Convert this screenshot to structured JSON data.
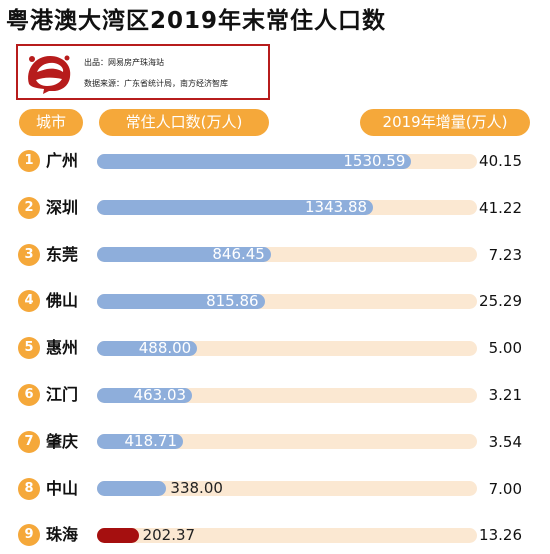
{
  "title": "粤港澳大湾区2019年末常住人口数",
  "info": {
    "source_line1": "出品：网易房产珠海站",
    "source_line2": "数据来源：广东省统计局，南方经济智库"
  },
  "logo_icon": "netease-logo-icon",
  "colors": {
    "accent": "#f5a83a",
    "bar": "#8eaedb",
    "bar_highlight": "#a50f0f",
    "track": "#fbe8d2",
    "frame": "#b71c1c"
  },
  "headers": {
    "city": "城市",
    "population": "常住人口数(万人)",
    "increase": "2019年增量(万人)"
  },
  "chart_data": {
    "type": "bar",
    "orientation": "horizontal",
    "title": "粤港澳大湾区2019年末常住人口数",
    "categories": [
      "广州",
      "深圳",
      "东莞",
      "佛山",
      "惠州",
      "江门",
      "肇庆",
      "中山",
      "珠海"
    ],
    "ranks": [
      "1",
      "2",
      "3",
      "4",
      "5",
      "6",
      "7",
      "8",
      "9"
    ],
    "series": [
      {
        "name": "常住人口数(万人)",
        "values": [
          1530.59,
          1343.88,
          846.45,
          815.86,
          488.0,
          463.03,
          418.71,
          338.0,
          202.37
        ],
        "labels": [
          "1530.59",
          "1343.88",
          "846.45",
          "815.86",
          "488.00",
          "463.03",
          "418.71",
          "338.00",
          "202.37"
        ]
      },
      {
        "name": "2019年增量(万人)",
        "values": [
          40.15,
          41.22,
          7.23,
          25.29,
          5.0,
          3.21,
          3.54,
          7.0,
          13.26
        ],
        "labels": [
          "40.15",
          "41.22",
          "7.23",
          "25.29",
          "5.00",
          "3.21",
          "3.54",
          "7.00",
          "13.26"
        ]
      }
    ],
    "highlight_category": "珠海",
    "xlim": [
      0,
      1850
    ]
  }
}
